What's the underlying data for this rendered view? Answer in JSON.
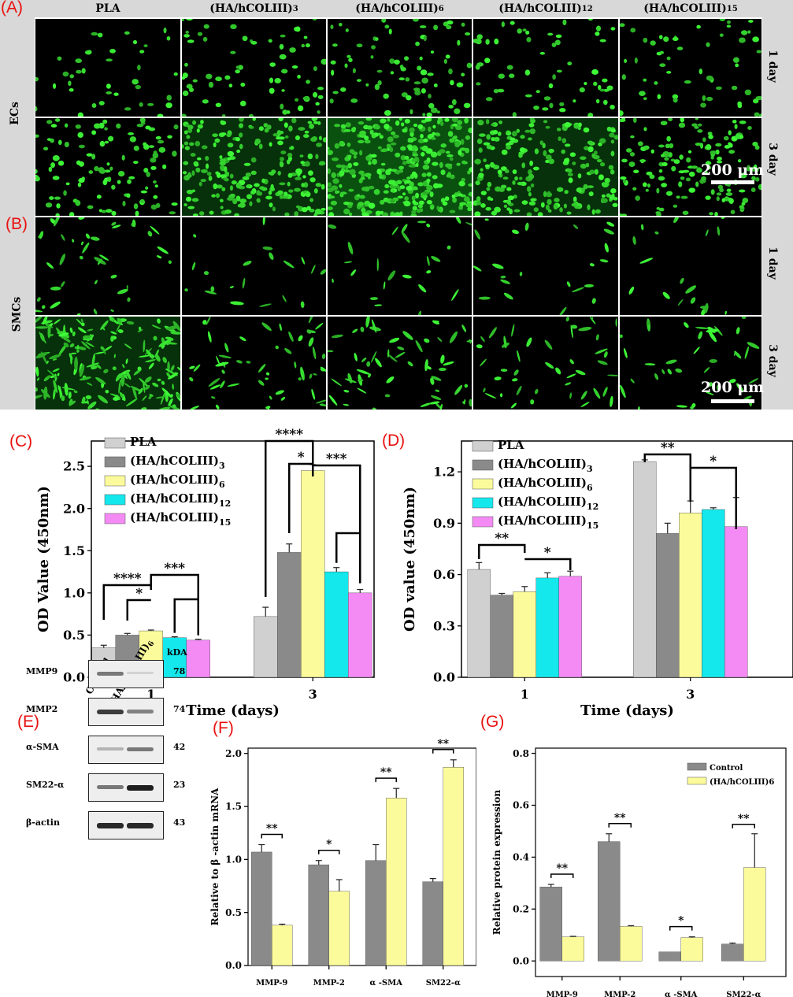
{
  "panel_labels": {
    "a": "(A)",
    "b": "(B)",
    "c": "(C)",
    "d": "(D)",
    "e": "(E)",
    "f": "(F)",
    "g": "(G)"
  },
  "microscopy": {
    "columns": [
      "PLA",
      "(HA/hCOLIII)3",
      "(HA/hCOLIII)6",
      "(HA/hCOLIII)12",
      "(HA/hCOLIII)15"
    ],
    "column_display": [
      {
        "base": "PLA",
        "sub": ""
      },
      {
        "base": "(HA/hCOLIII)",
        "sub": "3"
      },
      {
        "base": "(HA/hCOLIII)",
        "sub": "6"
      },
      {
        "base": "(HA/hCOLIII)",
        "sub": "12"
      },
      {
        "base": "(HA/hCOLIII)",
        "sub": "15"
      }
    ],
    "groups": [
      "ECs",
      "SMCs"
    ],
    "row_labels": [
      "1 day",
      "3 day",
      "1 day",
      "3 day"
    ],
    "scale_bar": "200 μm",
    "colors": {
      "cell": "#3ef03a",
      "background": "#000000",
      "frame": "#d8d8d8"
    }
  },
  "chart_data": [
    {
      "id": "C",
      "type": "bar",
      "xlabel": "Time (days)",
      "ylabel": "OD  Value (450nm)",
      "categories": [
        "1",
        "3"
      ],
      "ylim": [
        0,
        2.8
      ],
      "yticks": [
        "0.0",
        "0.5",
        "1.0",
        "1.5",
        "2.0",
        "2.5"
      ],
      "ytick_values": [
        0,
        0.5,
        1.0,
        1.5,
        2.0,
        2.5
      ],
      "series": [
        {
          "name": "PLA",
          "color": "#d0d0d0",
          "values": [
            0.35,
            0.72
          ],
          "errors": [
            0.03,
            0.11
          ]
        },
        {
          "name": "(HA/hCOLIII)3",
          "color": "#8a8a8a",
          "values": [
            0.5,
            1.48
          ],
          "errors": [
            0.02,
            0.1
          ]
        },
        {
          "name": "(HA/hCOLIII)6",
          "color": "#fbfb9b",
          "values": [
            0.55,
            2.45
          ],
          "errors": [
            0.01,
            0.07
          ]
        },
        {
          "name": "(HA/hCOLIII)12",
          "color": "#14e8ec",
          "values": [
            0.47,
            1.25
          ],
          "errors": [
            0.01,
            0.05
          ]
        },
        {
          "name": "(HA/hCOLIII)15",
          "color": "#f48af4",
          "values": [
            0.44,
            1.0
          ],
          "errors": [
            0.01,
            0.04
          ]
        }
      ],
      "legend_display": [
        {
          "base": "PLA",
          "sub": ""
        },
        {
          "base": "(HA/hCOLIII)",
          "sub": "3"
        },
        {
          "base": "(HA/hCOLIII)",
          "sub": "6"
        },
        {
          "base": "(HA/hCOLIII)",
          "sub": "12"
        },
        {
          "base": "(HA/hCOLIII)",
          "sub": "15"
        }
      ],
      "annotations": [
        "****",
        "*",
        "***",
        "****",
        "*",
        "***"
      ]
    },
    {
      "id": "D",
      "type": "bar",
      "xlabel": "Time (days)",
      "ylabel": "OD value (450nm)",
      "categories": [
        "1",
        "3"
      ],
      "ylim": [
        0,
        1.38
      ],
      "yticks": [
        "0.0",
        "0.3",
        "0.6",
        "0.9",
        "1.2"
      ],
      "ytick_values": [
        0,
        0.3,
        0.6,
        0.9,
        1.2
      ],
      "series": [
        {
          "name": "PLA",
          "color": "#d0d0d0",
          "values": [
            0.63,
            1.26
          ],
          "errors": [
            0.04,
            0.01
          ]
        },
        {
          "name": "(HA/hCOLIII)3",
          "color": "#8a8a8a",
          "values": [
            0.48,
            0.84
          ],
          "errors": [
            0.01,
            0.06
          ]
        },
        {
          "name": "(HA/hCOLIII)6",
          "color": "#fbfb9b",
          "values": [
            0.5,
            0.96
          ],
          "errors": [
            0.03,
            0.07
          ]
        },
        {
          "name": "(HA/hCOLIII)12",
          "color": "#14e8ec",
          "values": [
            0.58,
            0.98
          ],
          "errors": [
            0.03,
            0.01
          ]
        },
        {
          "name": "(HA/hCOLIII)15",
          "color": "#f48af4",
          "values": [
            0.59,
            0.88
          ],
          "errors": [
            0.03,
            0.17
          ]
        }
      ],
      "legend_display": [
        {
          "base": "PLA",
          "sub": ""
        },
        {
          "base": "(HA/hCOLIII)",
          "sub": "3"
        },
        {
          "base": "(HA/hCOLIII)",
          "sub": "6"
        },
        {
          "base": "(HA/hCOLIII)",
          "sub": "12"
        },
        {
          "base": "(HA/hCOLIII)",
          "sub": "15"
        }
      ],
      "annotations": [
        "**",
        "*",
        "**",
        "*"
      ]
    },
    {
      "id": "F",
      "type": "bar",
      "ylabel": "Relative to β -actin mRNA",
      "categories": [
        "MMP-9",
        "MMP-2",
        "α -SMA",
        "SM22-α"
      ],
      "ylim": [
        0,
        2.05
      ],
      "yticks": [
        "0.0",
        "0.5",
        "1.0",
        "1.5",
        "2.0"
      ],
      "ytick_values": [
        0,
        0.5,
        1.0,
        1.5,
        2.0
      ],
      "series": [
        {
          "name": "Control",
          "color": "#8a8a8a",
          "values": [
            1.07,
            0.95,
            0.99,
            0.79
          ],
          "errors": [
            0.07,
            0.04,
            0.15,
            0.03
          ]
        },
        {
          "name": "(HA/hCOLIII)6",
          "color": "#fbfb9b",
          "values": [
            0.38,
            0.7,
            1.58,
            1.87
          ],
          "errors": [
            0.01,
            0.11,
            0.09,
            0.07
          ]
        }
      ],
      "annotations": [
        "**",
        "*",
        "**",
        "**"
      ]
    },
    {
      "id": "G",
      "type": "bar",
      "ylabel": "Relative protein expression",
      "categories": [
        "MMP-9",
        "MMP-2",
        "α -SMA",
        "SM22-α"
      ],
      "ylim": [
        -0.06,
        0.82
      ],
      "yticks": [
        "0.0",
        "0.2",
        "0.4",
        "0.6",
        "0.8"
      ],
      "ytick_values": [
        0,
        0.2,
        0.4,
        0.6,
        0.8
      ],
      "series": [
        {
          "name": "Control",
          "color": "#8a8a8a",
          "values": [
            0.285,
            0.46,
            0.035,
            0.065
          ],
          "errors": [
            0.01,
            0.03,
            0,
            0.004
          ]
        },
        {
          "name": "(HA/hCOLIII)6",
          "color": "#fbfb9b",
          "values": [
            0.093,
            0.133,
            0.09,
            0.36
          ],
          "errors": [
            0.002,
            0.003,
            0.003,
            0.13
          ]
        }
      ],
      "legend": [
        "Control",
        "(HA/hCOLIII)6"
      ],
      "legend_position": "top-right",
      "annotations": [
        "**",
        "**",
        "*",
        "**"
      ]
    }
  ],
  "western_blot": {
    "lane_labels": [
      "Control",
      "(HA/hCOLIII)6"
    ],
    "lane_display": [
      {
        "base": "Control",
        "sub": ""
      },
      {
        "base": "(HA/hCOLIII)",
        "sub": "6"
      }
    ],
    "unit": "kDA",
    "proteins": [
      {
        "name": "MMP9",
        "kda": "78",
        "control": 0.55,
        "treated": 0.1
      },
      {
        "name": "MMP2",
        "kda": "74",
        "control": 0.85,
        "treated": 0.5
      },
      {
        "name": "α-SMA",
        "kda": "42",
        "control": 0.25,
        "treated": 0.55
      },
      {
        "name": "SM22-α",
        "kda": "23",
        "control": 0.55,
        "treated": 1.0
      },
      {
        "name": "β-actin",
        "kda": "43",
        "control": 0.95,
        "treated": 0.95
      }
    ]
  }
}
